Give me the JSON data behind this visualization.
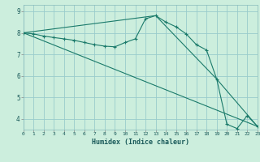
{
  "xlabel": "Humidex (Indice chaleur)",
  "bg_color": "#cceedd",
  "grid_color": "#99cccc",
  "line_color": "#1a7a6a",
  "xlim": [
    0,
    23
  ],
  "ylim": [
    3.5,
    9.3
  ],
  "xticks": [
    0,
    1,
    2,
    3,
    4,
    5,
    6,
    7,
    8,
    9,
    10,
    11,
    12,
    13,
    14,
    15,
    16,
    17,
    18,
    19,
    20,
    21,
    22,
    23
  ],
  "yticks": [
    4,
    5,
    6,
    7,
    8,
    9
  ],
  "line1_x": [
    0,
    1,
    2,
    3,
    4,
    5,
    6,
    7,
    8,
    9,
    10,
    11,
    12,
    13,
    14,
    15,
    16,
    17,
    18,
    19,
    20,
    21,
    22,
    23
  ],
  "line1_y": [
    8.0,
    7.95,
    7.85,
    7.78,
    7.72,
    7.65,
    7.55,
    7.45,
    7.38,
    7.35,
    7.55,
    7.72,
    8.65,
    8.8,
    8.5,
    8.28,
    7.95,
    7.45,
    7.2,
    5.85,
    3.75,
    3.55,
    4.15,
    3.65
  ],
  "line2_x": [
    0,
    13,
    19,
    23
  ],
  "line2_y": [
    8.0,
    8.8,
    5.85,
    3.65
  ],
  "line3_x": [
    0,
    23
  ],
  "line3_y": [
    8.0,
    3.65
  ],
  "marker_indices": [
    0,
    1,
    2,
    3,
    4,
    5,
    6,
    7,
    8,
    9,
    10,
    11,
    12,
    13,
    14,
    15,
    16,
    17,
    18,
    19,
    20,
    21,
    22,
    23
  ]
}
